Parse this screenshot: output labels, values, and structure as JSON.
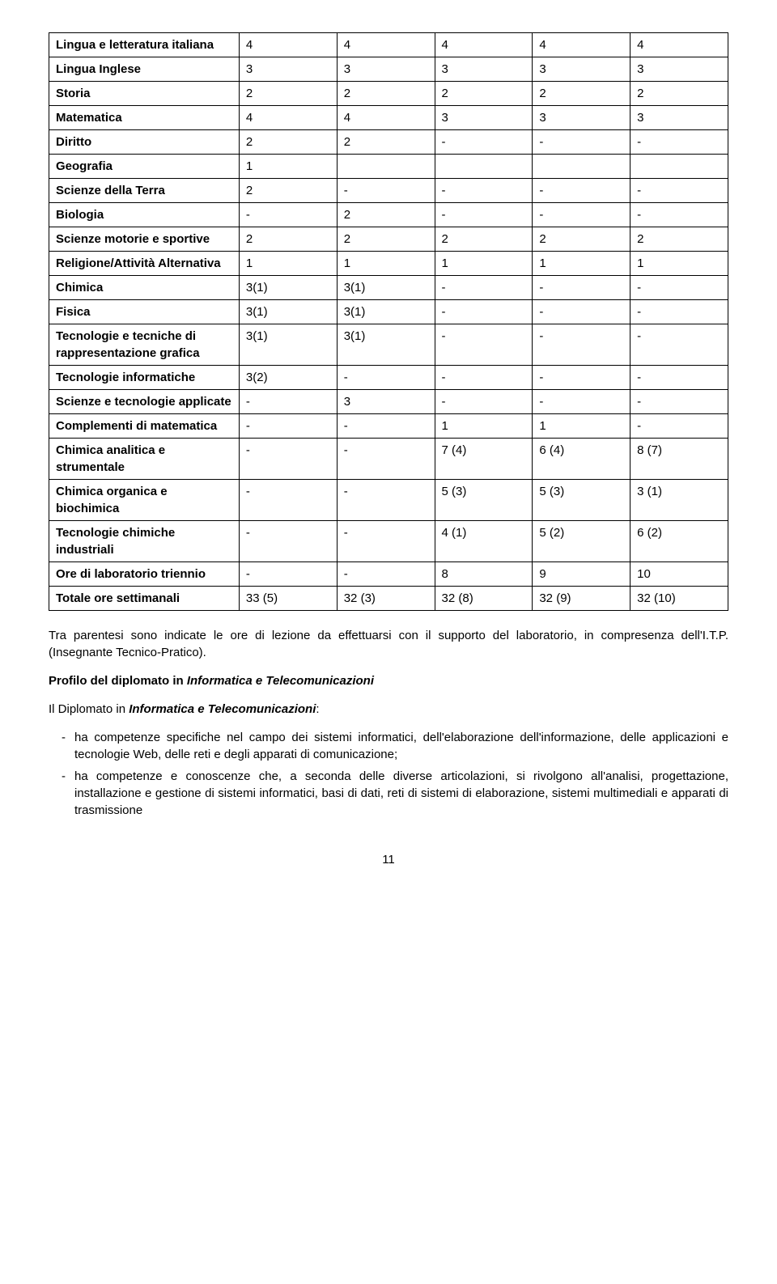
{
  "table": {
    "border_color": "#000000",
    "rows": [
      {
        "label_segments": [
          {
            "t": "Lingua e letteratura italiana",
            "style": "bold"
          }
        ],
        "values": [
          "4",
          "4",
          "4",
          "4",
          "4"
        ]
      },
      {
        "label_segments": [
          {
            "t": "Lingua Inglese",
            "style": "bold"
          }
        ],
        "values": [
          "3",
          "3",
          "3",
          "3",
          "3"
        ]
      },
      {
        "label_segments": [
          {
            "t": "Storia",
            "style": "bold"
          }
        ],
        "values": [
          "2",
          "2",
          "2",
          "2",
          "2"
        ]
      },
      {
        "label_segments": [
          {
            "t": "Matematica",
            "style": "bold"
          }
        ],
        "values": [
          "4",
          "4",
          "3",
          "3",
          "3"
        ]
      },
      {
        "label_segments": [
          {
            "t": "Diritto",
            "style": "bold"
          }
        ],
        "values": [
          "2",
          "2",
          "-",
          "-",
          "-"
        ]
      },
      {
        "label_segments": [
          {
            "t": "Geografia",
            "style": "bold"
          }
        ],
        "values": [
          "1",
          "",
          "",
          "",
          ""
        ]
      },
      {
        "label_segments": [
          {
            "t": "Scienze della Terra",
            "style": "bold"
          }
        ],
        "values": [
          "2",
          "-",
          "-",
          "-",
          "-"
        ]
      },
      {
        "label_segments": [
          {
            "t": "Biologia",
            "style": "bold"
          }
        ],
        "values": [
          "-",
          "2",
          "-",
          "-",
          "-"
        ]
      },
      {
        "label_segments": [
          {
            "t": "Scienze motorie e sportive",
            "style": "bold"
          }
        ],
        "values": [
          "2",
          "2",
          "2",
          "2",
          "2"
        ]
      },
      {
        "label_segments": [
          {
            "t": "Religione/Attività Alternativa",
            "style": "bold"
          }
        ],
        "values": [
          "1",
          "1",
          "1",
          "1",
          "1"
        ]
      },
      {
        "label_segments": [
          {
            "t": "Chimica",
            "style": "bold"
          }
        ],
        "values": [
          "3(1)",
          "3(1)",
          "-",
          "-",
          "-"
        ]
      },
      {
        "label_segments": [
          {
            "t": "Fisica",
            "style": "bold"
          }
        ],
        "values": [
          "3(1)",
          "3(1)",
          "-",
          "-",
          "-"
        ]
      },
      {
        "label_segments": [
          {
            "t": "Tecnologie e tecniche di rappresentazione grafica",
            "style": "bold"
          }
        ],
        "values": [
          "3(1)",
          "3(1)",
          "-",
          "-",
          "-"
        ]
      },
      {
        "label_segments": [
          {
            "t": "Tecnologie informatiche",
            "style": "bold"
          }
        ],
        "values": [
          "3(2)",
          "-",
          "-",
          "-",
          "-"
        ]
      },
      {
        "label_segments": [
          {
            "t": "Scienze e tecnologie applicate",
            "style": "bold"
          }
        ],
        "values": [
          "-",
          "3",
          "-",
          "-",
          "-"
        ]
      },
      {
        "label_segments": [
          {
            "t": "Complementi di matematica",
            "style": "bold"
          }
        ],
        "values": [
          "-",
          "-",
          "1",
          "1",
          "-"
        ]
      },
      {
        "label_segments": [
          {
            "t": "Chimica analitica e strumentale",
            "style": "bold"
          }
        ],
        "values": [
          "-",
          "-",
          "7 (4)",
          "6 (4)",
          "8 (7)"
        ]
      },
      {
        "label_segments": [
          {
            "t": "Chimica organica e biochimica",
            "style": "bold"
          }
        ],
        "values": [
          "-",
          "-",
          "5 (3)",
          "5 (3)",
          "3 (1)"
        ]
      },
      {
        "label_segments": [
          {
            "t": "Tecnologie chimiche industriali",
            "style": "bold"
          }
        ],
        "values": [
          "-",
          "-",
          "4 (1)",
          "5 (2)",
          "6 (2)"
        ]
      },
      {
        "label_segments": [
          {
            "t": "Ore di laboratorio triennio",
            "style": "bold"
          }
        ],
        "values": [
          "-",
          "-",
          "8",
          "9",
          "10"
        ]
      },
      {
        "label_segments": [
          {
            "t": "Totale ore settimanali",
            "style": "bold"
          }
        ],
        "values": [
          "33 (5)",
          "32 (3)",
          "32 (8)",
          "32 (9)",
          "32 (10)"
        ]
      }
    ]
  },
  "paragraph1": "Tra parentesi sono indicate le ore di lezione da effettuarsi con il supporto del laboratorio, in compresenza dell'I.T.P. (Insegnante Tecnico-Pratico).",
  "sectionTitle": {
    "pre": "Profilo del diplomato in ",
    "ital": "Informatica e Telecomunicazioni"
  },
  "intro": {
    "pre": "Il Diplomato in ",
    "ital": "Informatica e Telecomunicazioni",
    "post": ":"
  },
  "bullets": [
    "ha competenze specifiche nel campo dei sistemi informatici, dell'elaborazione dell'informazione, delle applicazioni e tecnologie Web, delle reti e degli apparati di comunicazione;",
    "ha competenze e conoscenze che, a seconda delle diverse articolazioni, si rivolgono all'analisi, progettazione, installazione e gestione di sistemi informatici, basi di dati, reti di sistemi di elaborazione, sistemi multimediali e apparati di trasmissione"
  ],
  "pageNumber": "11"
}
